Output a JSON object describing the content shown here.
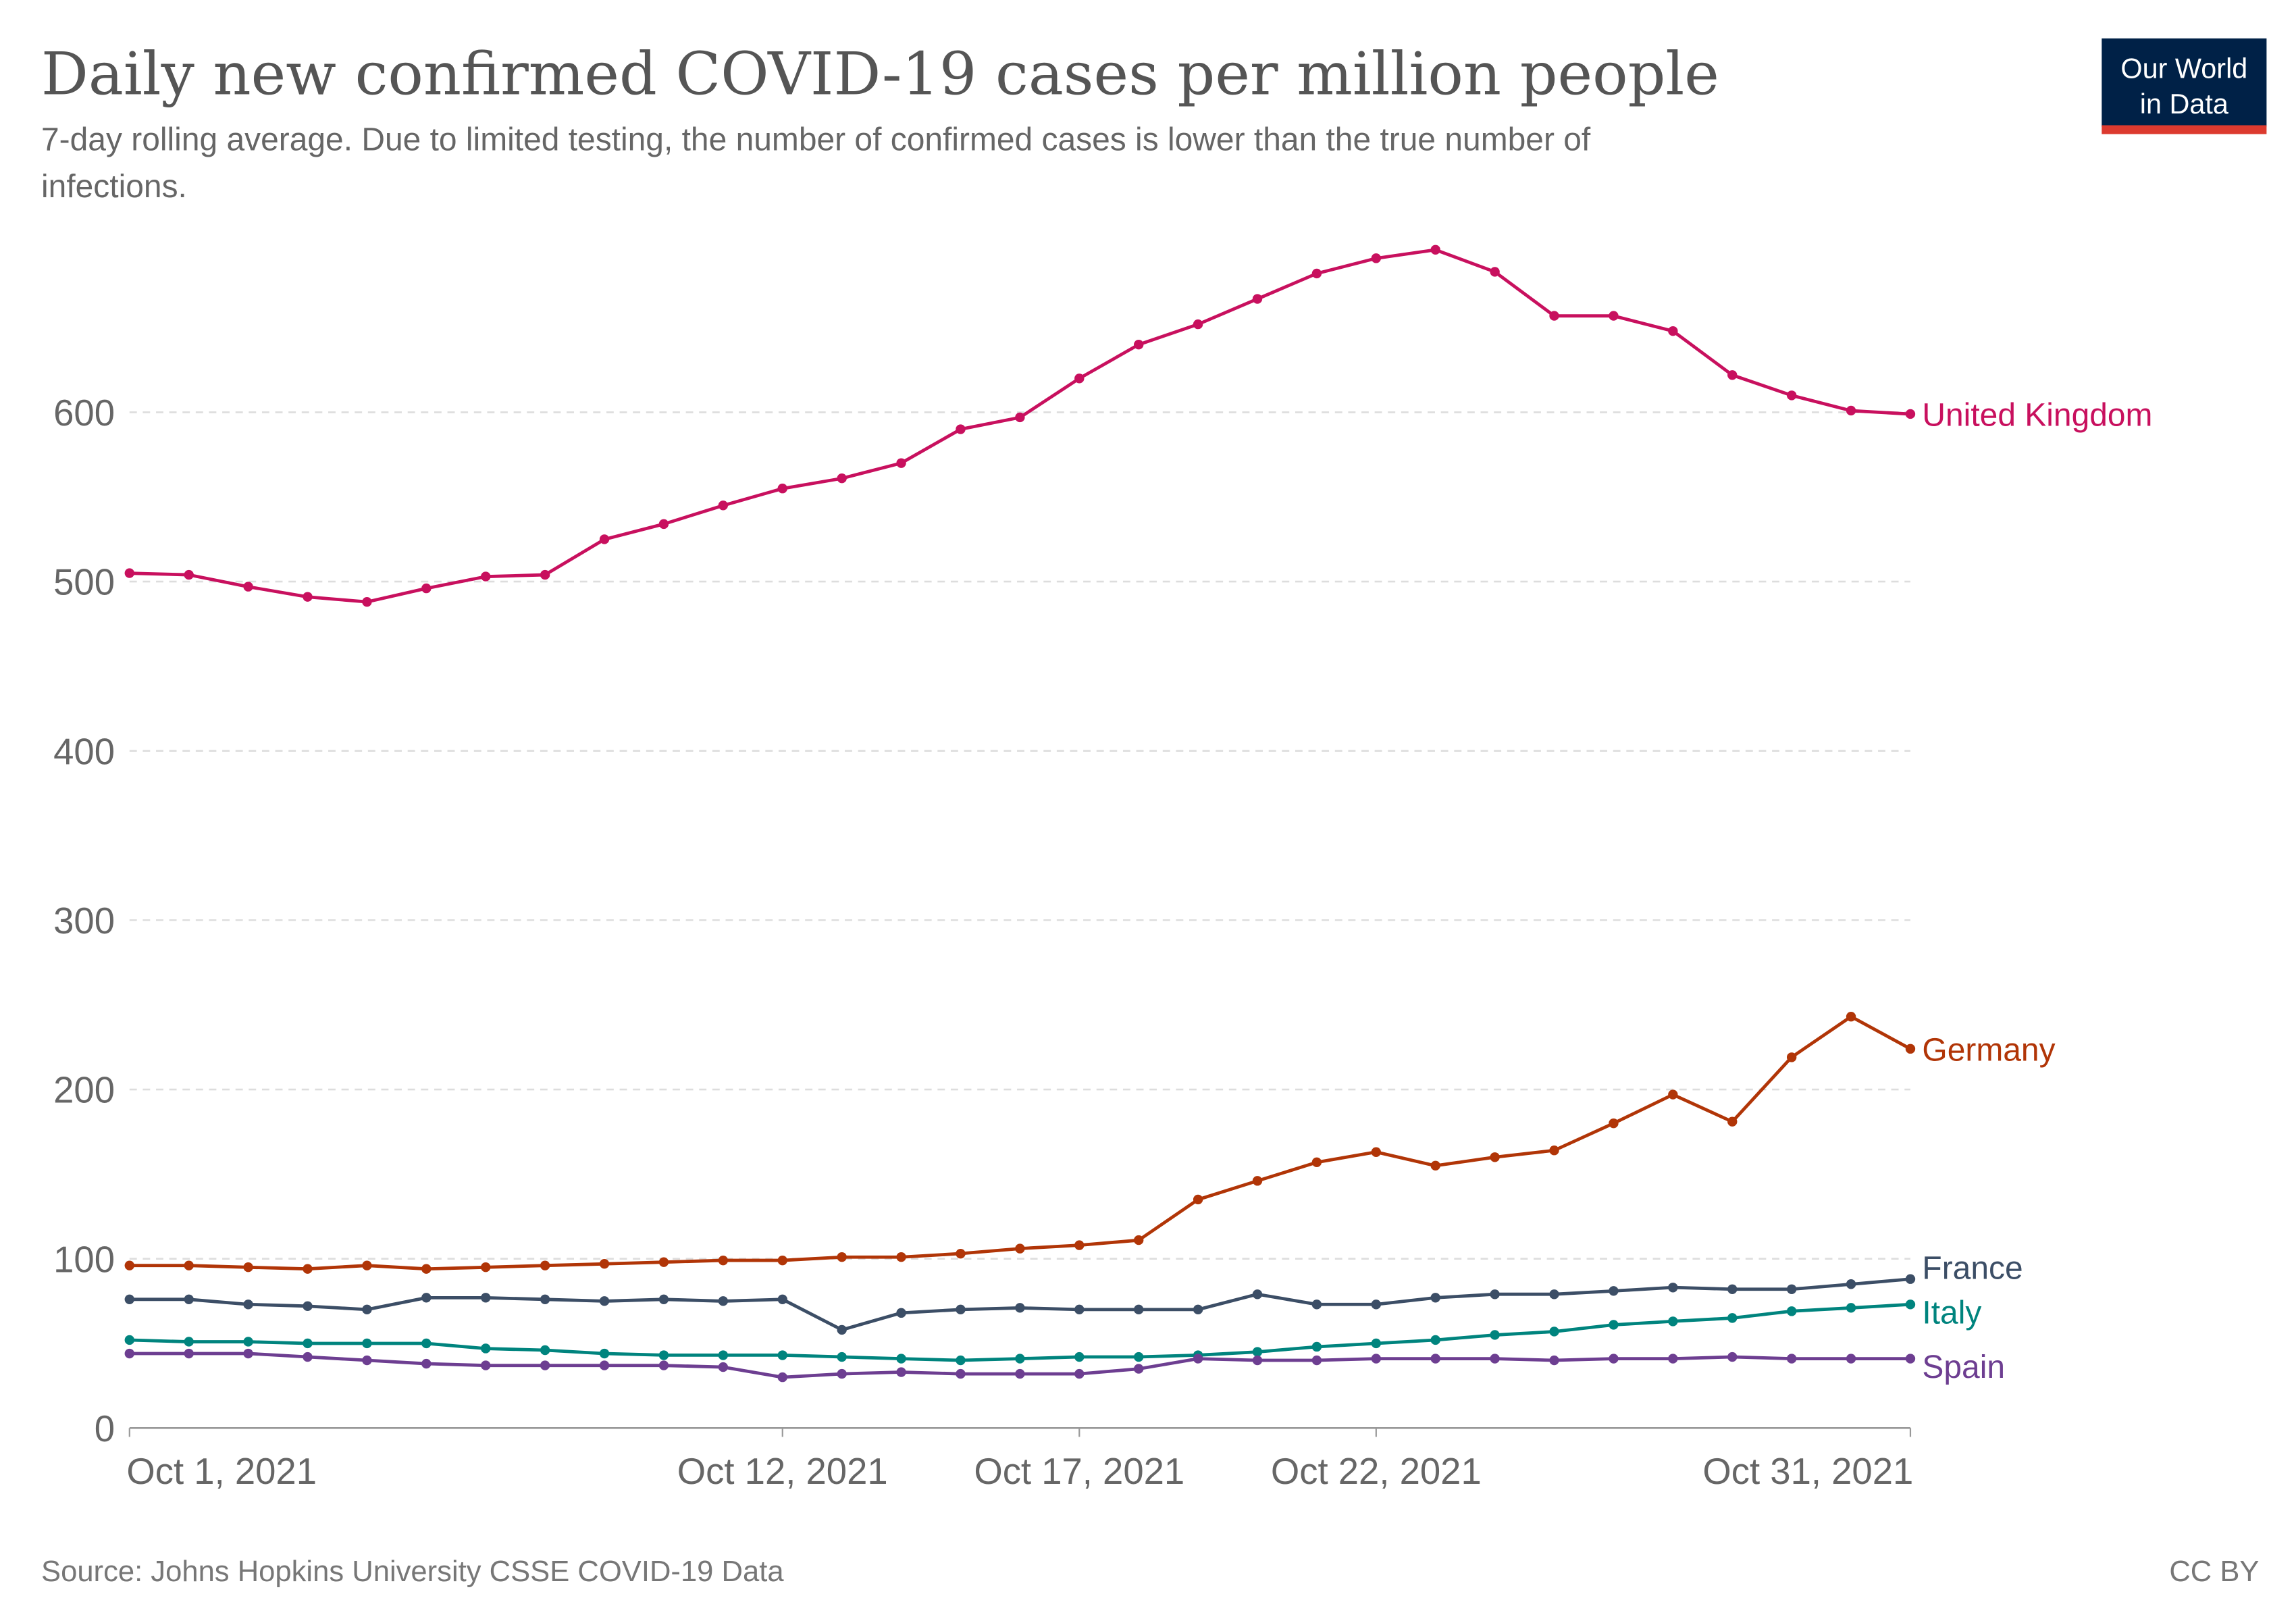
{
  "logo": {
    "line1": "Our World",
    "line2": "in Data",
    "bg": "#002147",
    "accent": "#dc3a2f"
  },
  "chart_data": {
    "type": "line",
    "title": "Daily new confirmed COVID-19 cases per million people",
    "subtitle_line1": "7-day rolling average. Due to limited testing, the number of confirmed cases is lower than the true number of",
    "subtitle_line2": "infections.",
    "source": "Source: Johns Hopkins University CSSE COVID-19 Data",
    "license": "CC BY",
    "x": [
      "2021-10-01",
      "2021-10-02",
      "2021-10-03",
      "2021-10-04",
      "2021-10-05",
      "2021-10-06",
      "2021-10-07",
      "2021-10-08",
      "2021-10-09",
      "2021-10-10",
      "2021-10-11",
      "2021-10-12",
      "2021-10-13",
      "2021-10-14",
      "2021-10-15",
      "2021-10-16",
      "2021-10-17",
      "2021-10-18",
      "2021-10-19",
      "2021-10-20",
      "2021-10-21",
      "2021-10-22",
      "2021-10-23",
      "2021-10-24",
      "2021-10-25",
      "2021-10-26",
      "2021-10-27",
      "2021-10-28",
      "2021-10-29",
      "2021-10-30",
      "2021-10-31"
    ],
    "x_ticks": [
      {
        "date": "2021-10-01",
        "label": "Oct 1, 2021"
      },
      {
        "date": "2021-10-12",
        "label": "Oct 12, 2021"
      },
      {
        "date": "2021-10-17",
        "label": "Oct 17, 2021"
      },
      {
        "date": "2021-10-22",
        "label": "Oct 22, 2021"
      },
      {
        "date": "2021-10-31",
        "label": "Oct 31, 2021"
      }
    ],
    "y_ticks": [
      0,
      100,
      200,
      300,
      400,
      500,
      600
    ],
    "ylim": [
      0,
      700
    ],
    "grid": "horizontal dashed",
    "legend": "inline labels at line ends",
    "series": [
      {
        "name": "United Kingdom",
        "color": "#c8105e",
        "values": [
          505,
          504,
          497,
          491,
          488,
          496,
          503,
          504,
          525,
          534,
          545,
          555,
          561,
          570,
          590,
          597,
          620,
          640,
          652,
          667,
          682,
          691,
          696,
          683,
          657,
          657,
          648,
          622,
          610,
          601,
          599
        ]
      },
      {
        "name": "Germany",
        "color": "#b13507",
        "values": [
          96,
          96,
          95,
          94,
          96,
          94,
          95,
          96,
          97,
          98,
          99,
          99,
          101,
          101,
          103,
          106,
          108,
          111,
          135,
          146,
          157,
          163,
          155,
          160,
          164,
          180,
          197,
          181,
          219,
          243,
          224
        ]
      },
      {
        "name": "France",
        "color": "#3c4e66",
        "values": [
          76,
          76,
          73,
          72,
          70,
          77,
          77,
          76,
          75,
          76,
          75,
          76,
          58,
          68,
          70,
          71,
          70,
          70,
          70,
          79,
          73,
          73,
          77,
          79,
          79,
          81,
          83,
          82,
          82,
          85,
          88
        ]
      },
      {
        "name": "Italy",
        "color": "#00847e",
        "values": [
          52,
          51,
          51,
          50,
          50,
          50,
          47,
          46,
          44,
          43,
          43,
          43,
          42,
          41,
          40,
          41,
          42,
          42,
          43,
          45,
          48,
          50,
          52,
          55,
          57,
          61,
          63,
          65,
          69,
          71,
          73
        ]
      },
      {
        "name": "Spain",
        "color": "#6d3e91",
        "values": [
          44,
          44,
          44,
          42,
          40,
          38,
          37,
          37,
          37,
          37,
          36,
          30,
          32,
          33,
          32,
          32,
          32,
          35,
          41,
          40,
          40,
          41,
          41,
          41,
          40,
          41,
          41,
          42,
          41,
          41,
          41
        ]
      }
    ]
  }
}
